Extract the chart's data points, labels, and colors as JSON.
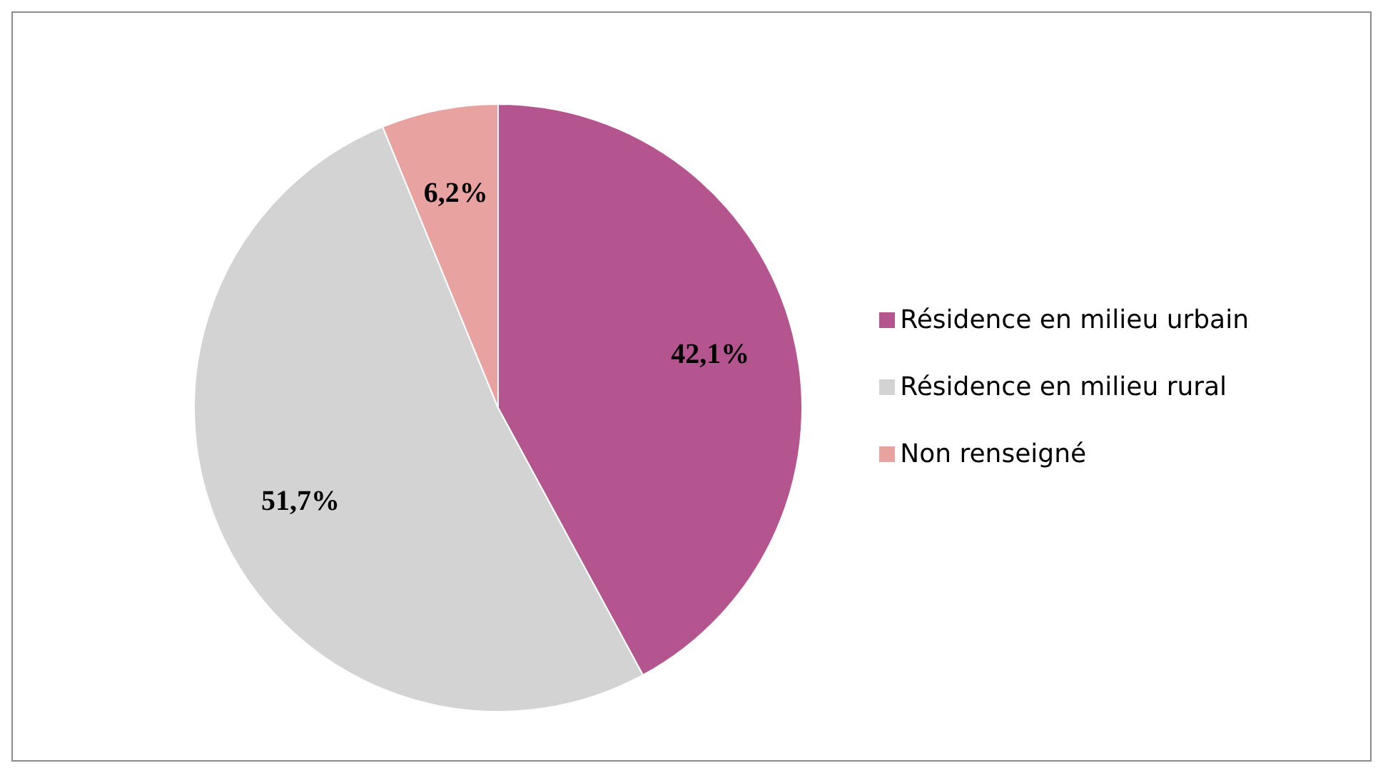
{
  "chart_data": {
    "type": "pie",
    "categories": [
      "Résidence en milieu urbain",
      "Résidence en milieu rural",
      "Non renseigné"
    ],
    "values": [
      42.1,
      51.7,
      6.2
    ],
    "colors": [
      "#b5558f",
      "#d3d3d3",
      "#e8a3a0"
    ],
    "value_labels": [
      "42,1%",
      "51,7%",
      "6,2%"
    ],
    "legend": "right"
  }
}
